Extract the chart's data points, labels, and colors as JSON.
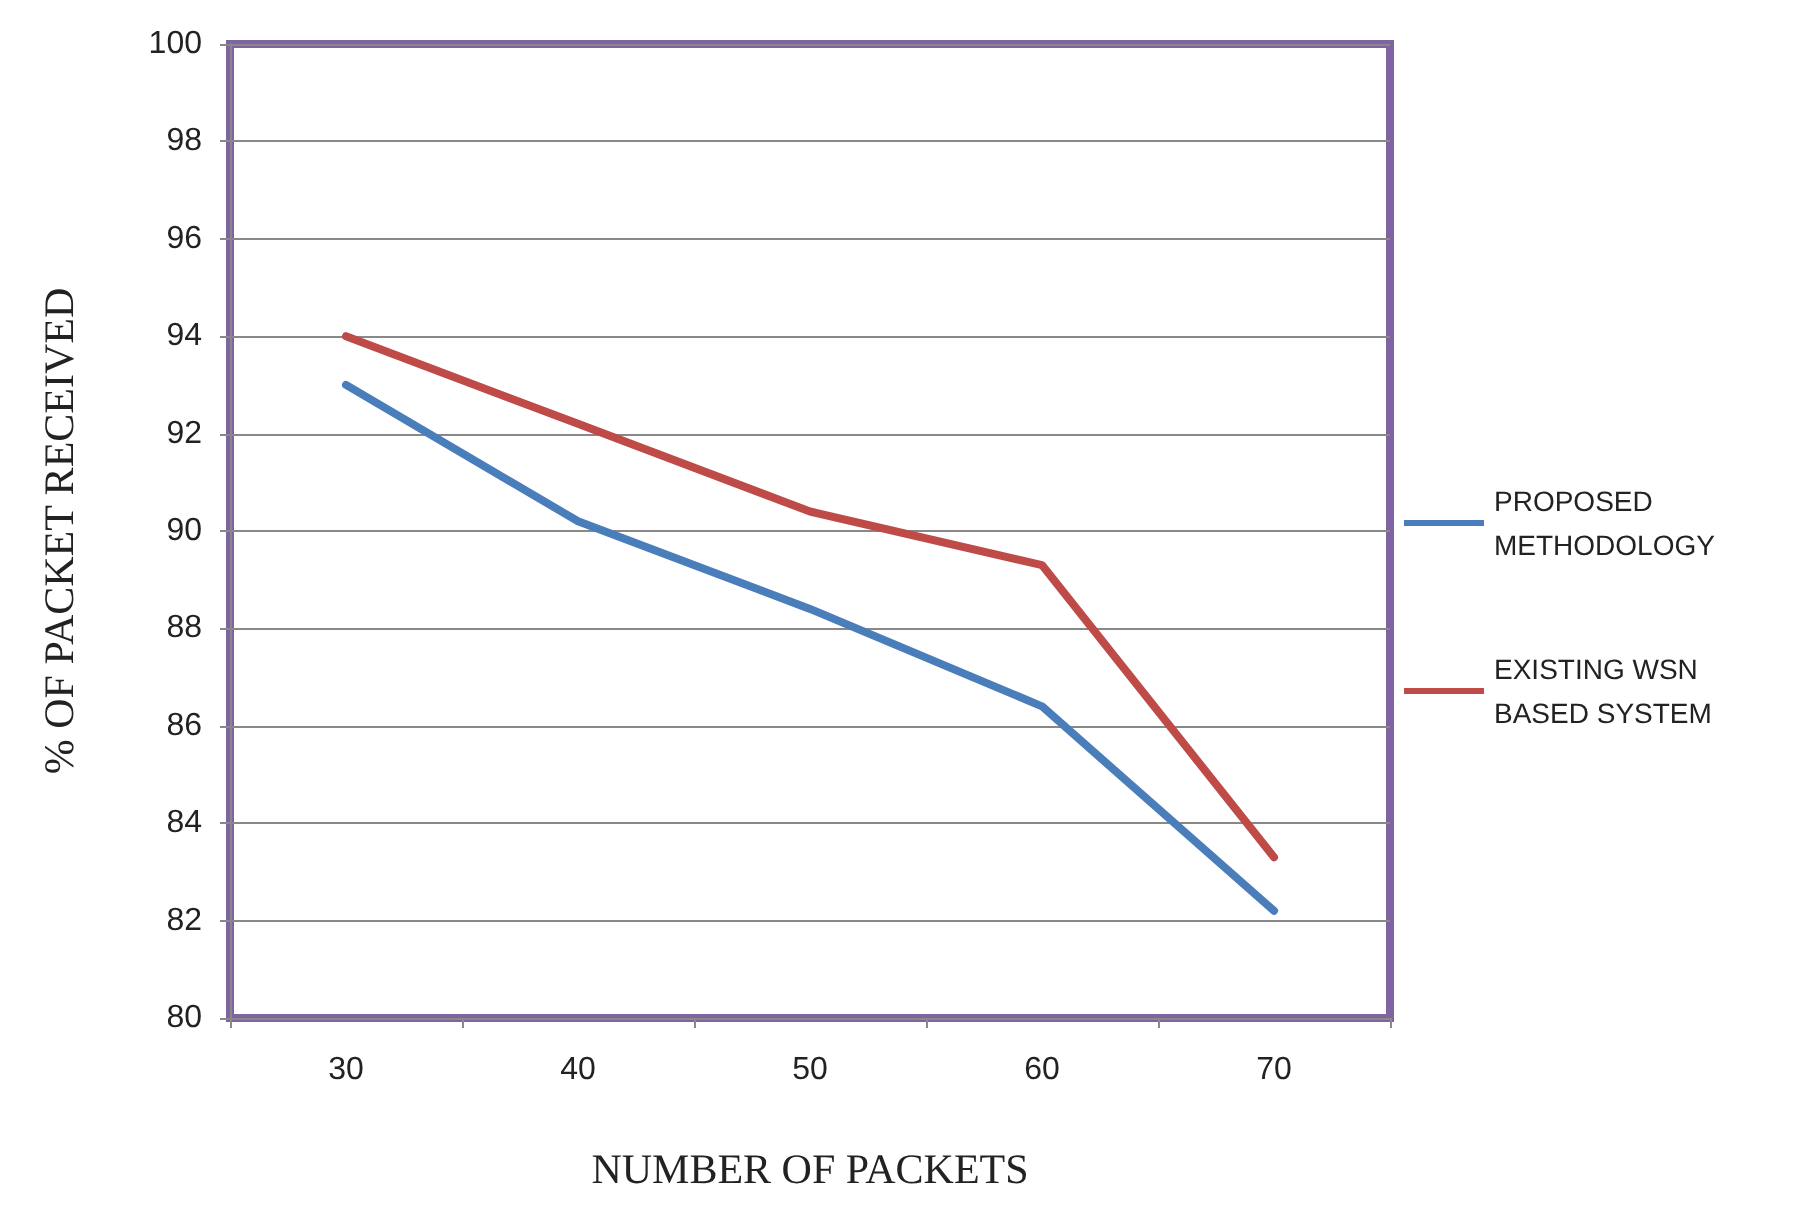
{
  "chart_data": {
    "type": "line",
    "xlabel": "NUMBER OF PACKETS",
    "ylabel": "% OF PACKET RECEIVED",
    "categories": [
      "30",
      "40",
      "50",
      "60",
      "70"
    ],
    "series": [
      {
        "name": "PROPOSED METHODOLOGY",
        "color": "#4a7ebb",
        "values": [
          93,
          90.2,
          88.4,
          86.4,
          82.2
        ]
      },
      {
        "name": "EXISTING WSN BASED SYSTEM",
        "color": "#be4b48",
        "values": [
          94,
          92.2,
          90.4,
          89.3,
          83.3
        ]
      }
    ],
    "ylim": [
      80,
      100
    ],
    "yticks": [
      80,
      82,
      84,
      86,
      88,
      90,
      92,
      94,
      96,
      98,
      100
    ],
    "grid": "y",
    "legend": "right",
    "marker": "none",
    "line_style": "solid"
  }
}
